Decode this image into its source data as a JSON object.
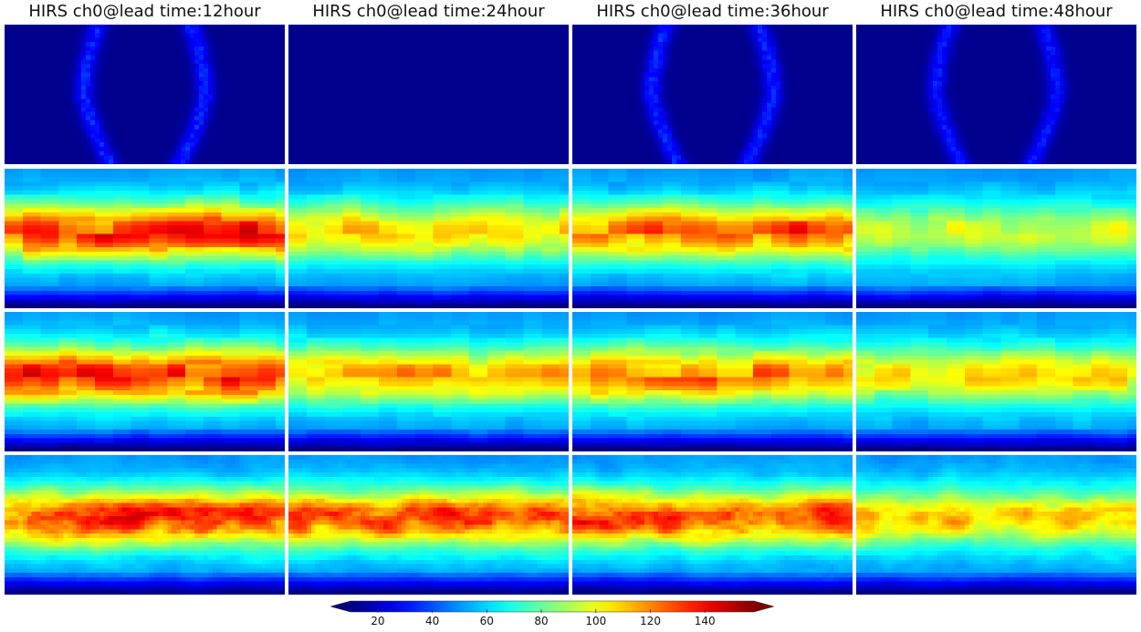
{
  "chart_data": {
    "type": "heatmap",
    "titles": [
      "HIRS ch0@lead time:12hour",
      "HIRS ch0@lead time:24hour",
      "HIRS ch0@lead time:36hour",
      "HIRS ch0@lead time:48hour"
    ],
    "colormap": "jet",
    "colorbar": {
      "vmin": 10,
      "vmax": 158,
      "ticks": [
        20,
        40,
        60,
        80,
        100,
        120,
        140
      ],
      "extend": "both"
    },
    "grid": false,
    "rows": [
      {
        "mode": "swath",
        "panels": [
          {
            "lead_hours": 12,
            "swath": true,
            "intensity": 1.0
          },
          {
            "lead_hours": 24,
            "swath": false,
            "intensity": 0.0
          },
          {
            "lead_hours": 36,
            "swath": true,
            "intensity": 1.0
          },
          {
            "lead_hours": 48,
            "swath": true,
            "intensity": 0.9
          }
        ]
      },
      {
        "mode": "field",
        "panels": [
          {
            "lead_hours": 12,
            "tropical_peak": 140,
            "blocky": true
          },
          {
            "lead_hours": 24,
            "tropical_peak": 112,
            "blocky": true
          },
          {
            "lead_hours": 36,
            "tropical_peak": 132,
            "blocky": true
          },
          {
            "lead_hours": 48,
            "tropical_peak": 100,
            "blocky": true
          }
        ]
      },
      {
        "mode": "field",
        "panels": [
          {
            "lead_hours": 12,
            "tropical_peak": 142,
            "blocky": true
          },
          {
            "lead_hours": 24,
            "tropical_peak": 118,
            "blocky": true
          },
          {
            "lead_hours": 36,
            "tropical_peak": 130,
            "blocky": true
          },
          {
            "lead_hours": 48,
            "tropical_peak": 110,
            "blocky": true
          }
        ]
      },
      {
        "mode": "field",
        "panels": [
          {
            "lead_hours": 12,
            "tropical_peak": 140,
            "blocky": false
          },
          {
            "lead_hours": 24,
            "tropical_peak": 136,
            "blocky": false
          },
          {
            "lead_hours": 36,
            "tropical_peak": 138,
            "blocky": false
          },
          {
            "lead_hours": 48,
            "tropical_peak": 116,
            "blocky": false
          }
        ]
      }
    ]
  }
}
